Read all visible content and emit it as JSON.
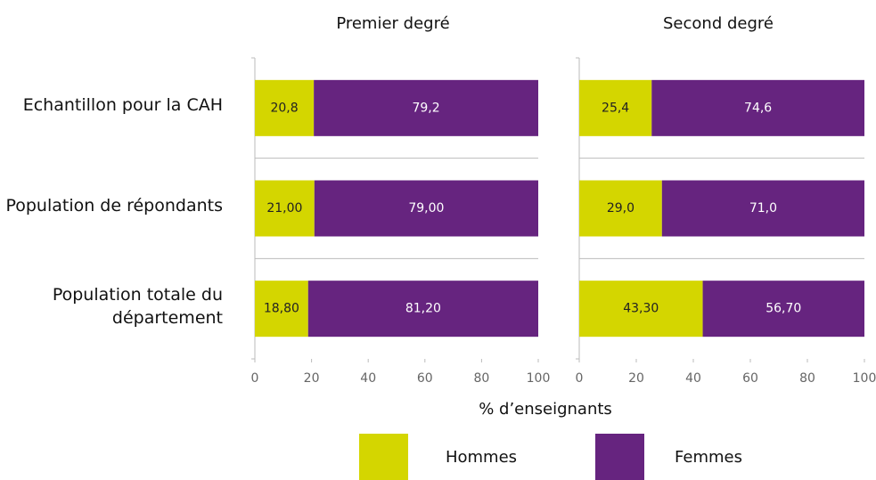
{
  "chart_data": [
    {
      "type": "stacked-barh",
      "title": "Premier degré",
      "categories": [
        "Echantillon pour la CAH",
        "Population de répondants",
        "Population totale du département"
      ],
      "series": [
        {
          "name": "Hommes",
          "color": "#d4d600",
          "values": [
            20.8,
            21.0,
            18.8
          ],
          "value_labels": [
            "20,8",
            "21,00",
            "18,80"
          ]
        },
        {
          "name": "Femmes",
          "color": "#66247f",
          "values": [
            79.2,
            79.0,
            81.2
          ],
          "value_labels": [
            "79,2",
            "79,00",
            "81,20"
          ]
        }
      ],
      "xlim": [
        0,
        100
      ],
      "xticks": [
        0,
        20,
        40,
        60,
        80,
        100
      ],
      "xlabel": "% d’enseignants",
      "legend": "bottom"
    },
    {
      "type": "stacked-barh",
      "title": "Second degré",
      "series": [
        {
          "name": "Hommes",
          "color": "#d4d600",
          "values": [
            25.4,
            29.0,
            43.3
          ],
          "value_labels": [
            "25,4",
            "29,0",
            "43,30"
          ]
        },
        {
          "name": "Femmes",
          "color": "#66247f",
          "values": [
            74.6,
            71.0,
            56.7
          ],
          "value_labels": [
            "74,6",
            "71,0",
            "56,70"
          ]
        }
      ],
      "xlim": [
        0,
        100
      ],
      "xticks": [
        0,
        20,
        40,
        60,
        80,
        100
      ]
    }
  ]
}
